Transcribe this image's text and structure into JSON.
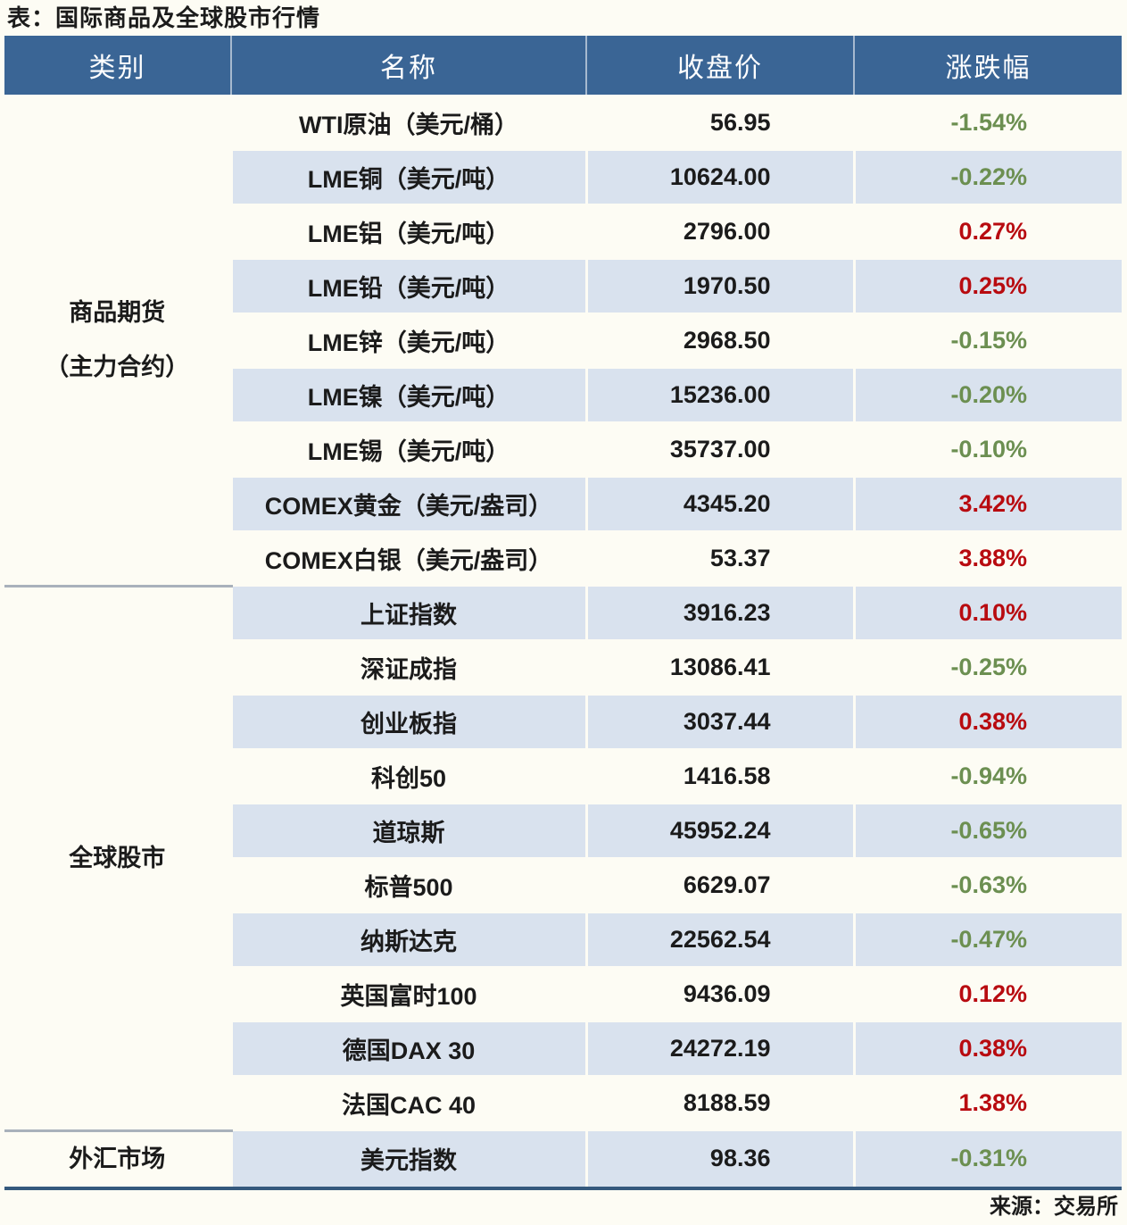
{
  "title": "表：国际商品及全球股市行情",
  "source": "来源：交易所",
  "columns": [
    "类别",
    "名称",
    "收盘价",
    "涨跌幅"
  ],
  "colors": {
    "header_bg": "#3a6595",
    "stripe_blue": "#d9e2ee",
    "background": "#fdfcf4",
    "up_red": "#b80b10",
    "down_green": "#6c8f51",
    "bottom_line": "#35597d",
    "section_line": "#a9b1bb"
  },
  "sections": [
    {
      "category": "商品期货（主力合约）",
      "category_lines": [
        "商品期货",
        "（主力合约）"
      ],
      "rows": [
        {
          "name": "WTI原油（美元/桶）",
          "close": "56.95",
          "change": "-1.54%",
          "direction": "down"
        },
        {
          "name": "LME铜（美元/吨）",
          "close": "10624.00",
          "change": "-0.22%",
          "direction": "down"
        },
        {
          "name": "LME铝（美元/吨）",
          "close": "2796.00",
          "change": "0.27%",
          "direction": "up"
        },
        {
          "name": "LME铅（美元/吨）",
          "close": "1970.50",
          "change": "0.25%",
          "direction": "up"
        },
        {
          "name": "LME锌（美元/吨）",
          "close": "2968.50",
          "change": "-0.15%",
          "direction": "down"
        },
        {
          "name": "LME镍（美元/吨）",
          "close": "15236.00",
          "change": "-0.20%",
          "direction": "down"
        },
        {
          "name": "LME锡（美元/吨）",
          "close": "35737.00",
          "change": "-0.10%",
          "direction": "down"
        },
        {
          "name": "COMEX黄金（美元/盎司）",
          "close": "4345.20",
          "change": "3.42%",
          "direction": "up"
        },
        {
          "name": "COMEX白银（美元/盎司）",
          "close": "53.37",
          "change": "3.88%",
          "direction": "up"
        }
      ]
    },
    {
      "category": "全球股市",
      "category_lines": [
        "全球股市"
      ],
      "rows": [
        {
          "name": "上证指数",
          "close": "3916.23",
          "change": "0.10%",
          "direction": "up"
        },
        {
          "name": "深证成指",
          "close": "13086.41",
          "change": "-0.25%",
          "direction": "down"
        },
        {
          "name": "创业板指",
          "close": "3037.44",
          "change": "0.38%",
          "direction": "up"
        },
        {
          "name": "科创50",
          "close": "1416.58",
          "change": "-0.94%",
          "direction": "down"
        },
        {
          "name": "道琼斯",
          "close": "45952.24",
          "change": "-0.65%",
          "direction": "down"
        },
        {
          "name": "标普500",
          "close": "6629.07",
          "change": "-0.63%",
          "direction": "down"
        },
        {
          "name": "纳斯达克",
          "close": "22562.54",
          "change": "-0.47%",
          "direction": "down"
        },
        {
          "name": "英国富时100",
          "close": "9436.09",
          "change": "0.12%",
          "direction": "up"
        },
        {
          "name": "德国DAX 30",
          "close": "24272.19",
          "change": "0.38%",
          "direction": "up"
        },
        {
          "name": "法国CAC 40",
          "close": "8188.59",
          "change": "1.38%",
          "direction": "up"
        }
      ]
    },
    {
      "category": "外汇市场",
      "category_lines": [
        "外汇市场"
      ],
      "rows": [
        {
          "name": "美元指数",
          "close": "98.36",
          "change": "-0.31%",
          "direction": "down"
        }
      ]
    }
  ]
}
